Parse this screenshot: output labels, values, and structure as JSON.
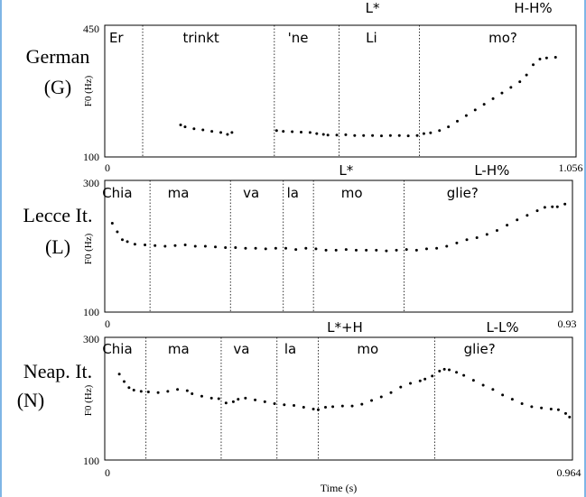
{
  "xlabel": "Time (s)",
  "chart_data": [
    {
      "type": "scatter",
      "language": [
        "German",
        "(G)"
      ],
      "ylabel": "F0 (Hz)",
      "ylim": [
        100,
        450
      ],
      "xlim": [
        0,
        1.056
      ],
      "ytick_labels": [
        "450",
        "100"
      ],
      "xtick_labels": [
        "0",
        "1.056"
      ],
      "boundaries": [
        0.085,
        0.38,
        0.525,
        0.705
      ],
      "syllables": [
        {
          "text": "Er",
          "x": 0.01
        },
        {
          "text": "trinkt",
          "x": 0.175
        },
        {
          "text": "'ne",
          "x": 0.41
        },
        {
          "text": "Li",
          "x": 0.585
        },
        {
          "text": "mo?",
          "x": 0.86
        }
      ],
      "tones": [
        {
          "text": "L*",
          "x": 0.6
        },
        {
          "text": "H-H%",
          "x": 0.96
        }
      ],
      "segments": [
        [
          [
            0.17,
            185
          ],
          [
            0.18,
            180
          ],
          [
            0.2,
            175
          ],
          [
            0.22,
            172
          ],
          [
            0.24,
            168
          ],
          [
            0.26,
            165
          ],
          [
            0.275,
            160
          ],
          [
            0.285,
            165
          ]
        ],
        [
          [
            0.385,
            170
          ],
          [
            0.4,
            168
          ],
          [
            0.42,
            167
          ],
          [
            0.44,
            166
          ],
          [
            0.46,
            165
          ],
          [
            0.475,
            162
          ],
          [
            0.49,
            160
          ],
          [
            0.5,
            158
          ],
          [
            0.52,
            158
          ],
          [
            0.54,
            159
          ],
          [
            0.56,
            157
          ],
          [
            0.58,
            157
          ],
          [
            0.6,
            157
          ],
          [
            0.62,
            156
          ],
          [
            0.64,
            157
          ],
          [
            0.66,
            157
          ],
          [
            0.68,
            156
          ],
          [
            0.7,
            157
          ],
          [
            0.715,
            162
          ],
          [
            0.73,
            164
          ],
          [
            0.75,
            170
          ],
          [
            0.77,
            180
          ],
          [
            0.79,
            195
          ],
          [
            0.81,
            210
          ],
          [
            0.83,
            225
          ],
          [
            0.85,
            240
          ],
          [
            0.87,
            255
          ],
          [
            0.89,
            270
          ],
          [
            0.91,
            285
          ],
          [
            0.93,
            300
          ],
          [
            0.945,
            318
          ],
          [
            0.96,
            345
          ],
          [
            0.975,
            360
          ],
          [
            0.99,
            363
          ],
          [
            1.01,
            365
          ]
        ]
      ]
    },
    {
      "type": "scatter",
      "language": [
        "Lecce It.",
        "(L)"
      ],
      "ylabel": "F0 (Hz)",
      "ylim": [
        100,
        300
      ],
      "xlim": [
        0,
        0.93
      ],
      "ytick_labels": [
        "300",
        "100"
      ],
      "xtick_labels": [
        "0",
        "0.93"
      ],
      "boundaries": [
        0.09,
        0.25,
        0.355,
        0.415,
        0.595
      ],
      "syllables": [
        {
          "text": "Chia",
          "x": -0.005
        },
        {
          "text": "ma",
          "x": 0.125
        },
        {
          "text": "va",
          "x": 0.275
        },
        {
          "text": "la",
          "x": 0.362
        },
        {
          "text": "mo",
          "x": 0.47
        },
        {
          "text": "glie?",
          "x": 0.68
        }
      ],
      "tones": [
        {
          "text": "L*",
          "x": 0.48
        },
        {
          "text": "L-H%",
          "x": 0.77
        }
      ],
      "segments": [
        [
          [
            0.015,
            235
          ],
          [
            0.025,
            222
          ],
          [
            0.035,
            210
          ],
          [
            0.045,
            207
          ],
          [
            0.06,
            203
          ],
          [
            0.08,
            202
          ],
          [
            0.1,
            201
          ],
          [
            0.12,
            200
          ],
          [
            0.14,
            201
          ],
          [
            0.16,
            202
          ],
          [
            0.18,
            200
          ],
          [
            0.2,
            200
          ],
          [
            0.22,
            199
          ],
          [
            0.24,
            198
          ],
          [
            0.26,
            198
          ],
          [
            0.28,
            197
          ],
          [
            0.3,
            197
          ],
          [
            0.32,
            196
          ],
          [
            0.34,
            197
          ],
          [
            0.36,
            197
          ],
          [
            0.38,
            195
          ],
          [
            0.4,
            197
          ],
          [
            0.42,
            196
          ],
          [
            0.44,
            194
          ],
          [
            0.46,
            194
          ],
          [
            0.48,
            195
          ],
          [
            0.5,
            194
          ],
          [
            0.52,
            194
          ],
          [
            0.54,
            194
          ],
          [
            0.56,
            193
          ],
          [
            0.58,
            194
          ],
          [
            0.6,
            195
          ],
          [
            0.62,
            194
          ],
          [
            0.64,
            196
          ],
          [
            0.66,
            197
          ],
          [
            0.68,
            200
          ],
          [
            0.7,
            205
          ],
          [
            0.72,
            210
          ],
          [
            0.74,
            213
          ],
          [
            0.76,
            218
          ],
          [
            0.78,
            224
          ],
          [
            0.8,
            232
          ],
          [
            0.82,
            240
          ],
          [
            0.84,
            247
          ],
          [
            0.86,
            254
          ],
          [
            0.875,
            259
          ],
          [
            0.89,
            260
          ],
          [
            0.9,
            260
          ],
          [
            0.915,
            264
          ]
        ]
      ]
    },
    {
      "type": "scatter",
      "language": [
        "Neap. It.",
        "(N)"
      ],
      "ylabel": "F0 (Hz)",
      "ylim": [
        100,
        300
      ],
      "xlim": [
        0,
        0.964
      ],
      "ytick_labels": [
        "300",
        "100"
      ],
      "xtick_labels": [
        "0",
        "0.964"
      ],
      "boundaries": [
        0.085,
        0.24,
        0.355,
        0.44,
        0.68
      ],
      "syllables": [
        {
          "text": "Chia",
          "x": -0.005
        },
        {
          "text": "ma",
          "x": 0.13
        },
        {
          "text": "va",
          "x": 0.265
        },
        {
          "text": "la",
          "x": 0.37
        },
        {
          "text": "mo",
          "x": 0.52
        },
        {
          "text": "glie?",
          "x": 0.74
        }
      ],
      "tones": [
        {
          "text": "L*+H",
          "x": 0.495
        },
        {
          "text": "L-L%",
          "x": 0.82
        }
      ],
      "segments": [
        [
          [
            0.03,
            240
          ],
          [
            0.04,
            228
          ],
          [
            0.05,
            218
          ],
          [
            0.06,
            214
          ],
          [
            0.075,
            212
          ],
          [
            0.09,
            211
          ],
          [
            0.11,
            210
          ],
          [
            0.13,
            212
          ],
          [
            0.15,
            215
          ],
          [
            0.17,
            213
          ],
          [
            0.18,
            208
          ],
          [
            0.2,
            204
          ],
          [
            0.22,
            201
          ],
          [
            0.235,
            200
          ],
          [
            0.25,
            193
          ],
          [
            0.265,
            195
          ],
          [
            0.275,
            199
          ],
          [
            0.29,
            201
          ],
          [
            0.31,
            198
          ],
          [
            0.33,
            195
          ],
          [
            0.35,
            192
          ],
          [
            0.37,
            190
          ],
          [
            0.39,
            189
          ],
          [
            0.41,
            186
          ],
          [
            0.43,
            183
          ],
          [
            0.44,
            182
          ],
          [
            0.455,
            186
          ],
          [
            0.47,
            187
          ],
          [
            0.49,
            188
          ],
          [
            0.51,
            188
          ],
          [
            0.53,
            191
          ],
          [
            0.55,
            197
          ],
          [
            0.57,
            203
          ],
          [
            0.59,
            210
          ],
          [
            0.61,
            219
          ],
          [
            0.63,
            225
          ],
          [
            0.65,
            229
          ],
          [
            0.66,
            232
          ],
          [
            0.675,
            237
          ],
          [
            0.69,
            245
          ],
          [
            0.7,
            248
          ],
          [
            0.71,
            247
          ],
          [
            0.725,
            243
          ],
          [
            0.74,
            238
          ],
          [
            0.76,
            230
          ],
          [
            0.78,
            222
          ],
          [
            0.8,
            215
          ],
          [
            0.82,
            206
          ],
          [
            0.84,
            199
          ],
          [
            0.86,
            192
          ],
          [
            0.88,
            187
          ],
          [
            0.9,
            185
          ],
          [
            0.92,
            183
          ],
          [
            0.935,
            182
          ],
          [
            0.95,
            176
          ],
          [
            0.958,
            170
          ]
        ]
      ]
    }
  ]
}
